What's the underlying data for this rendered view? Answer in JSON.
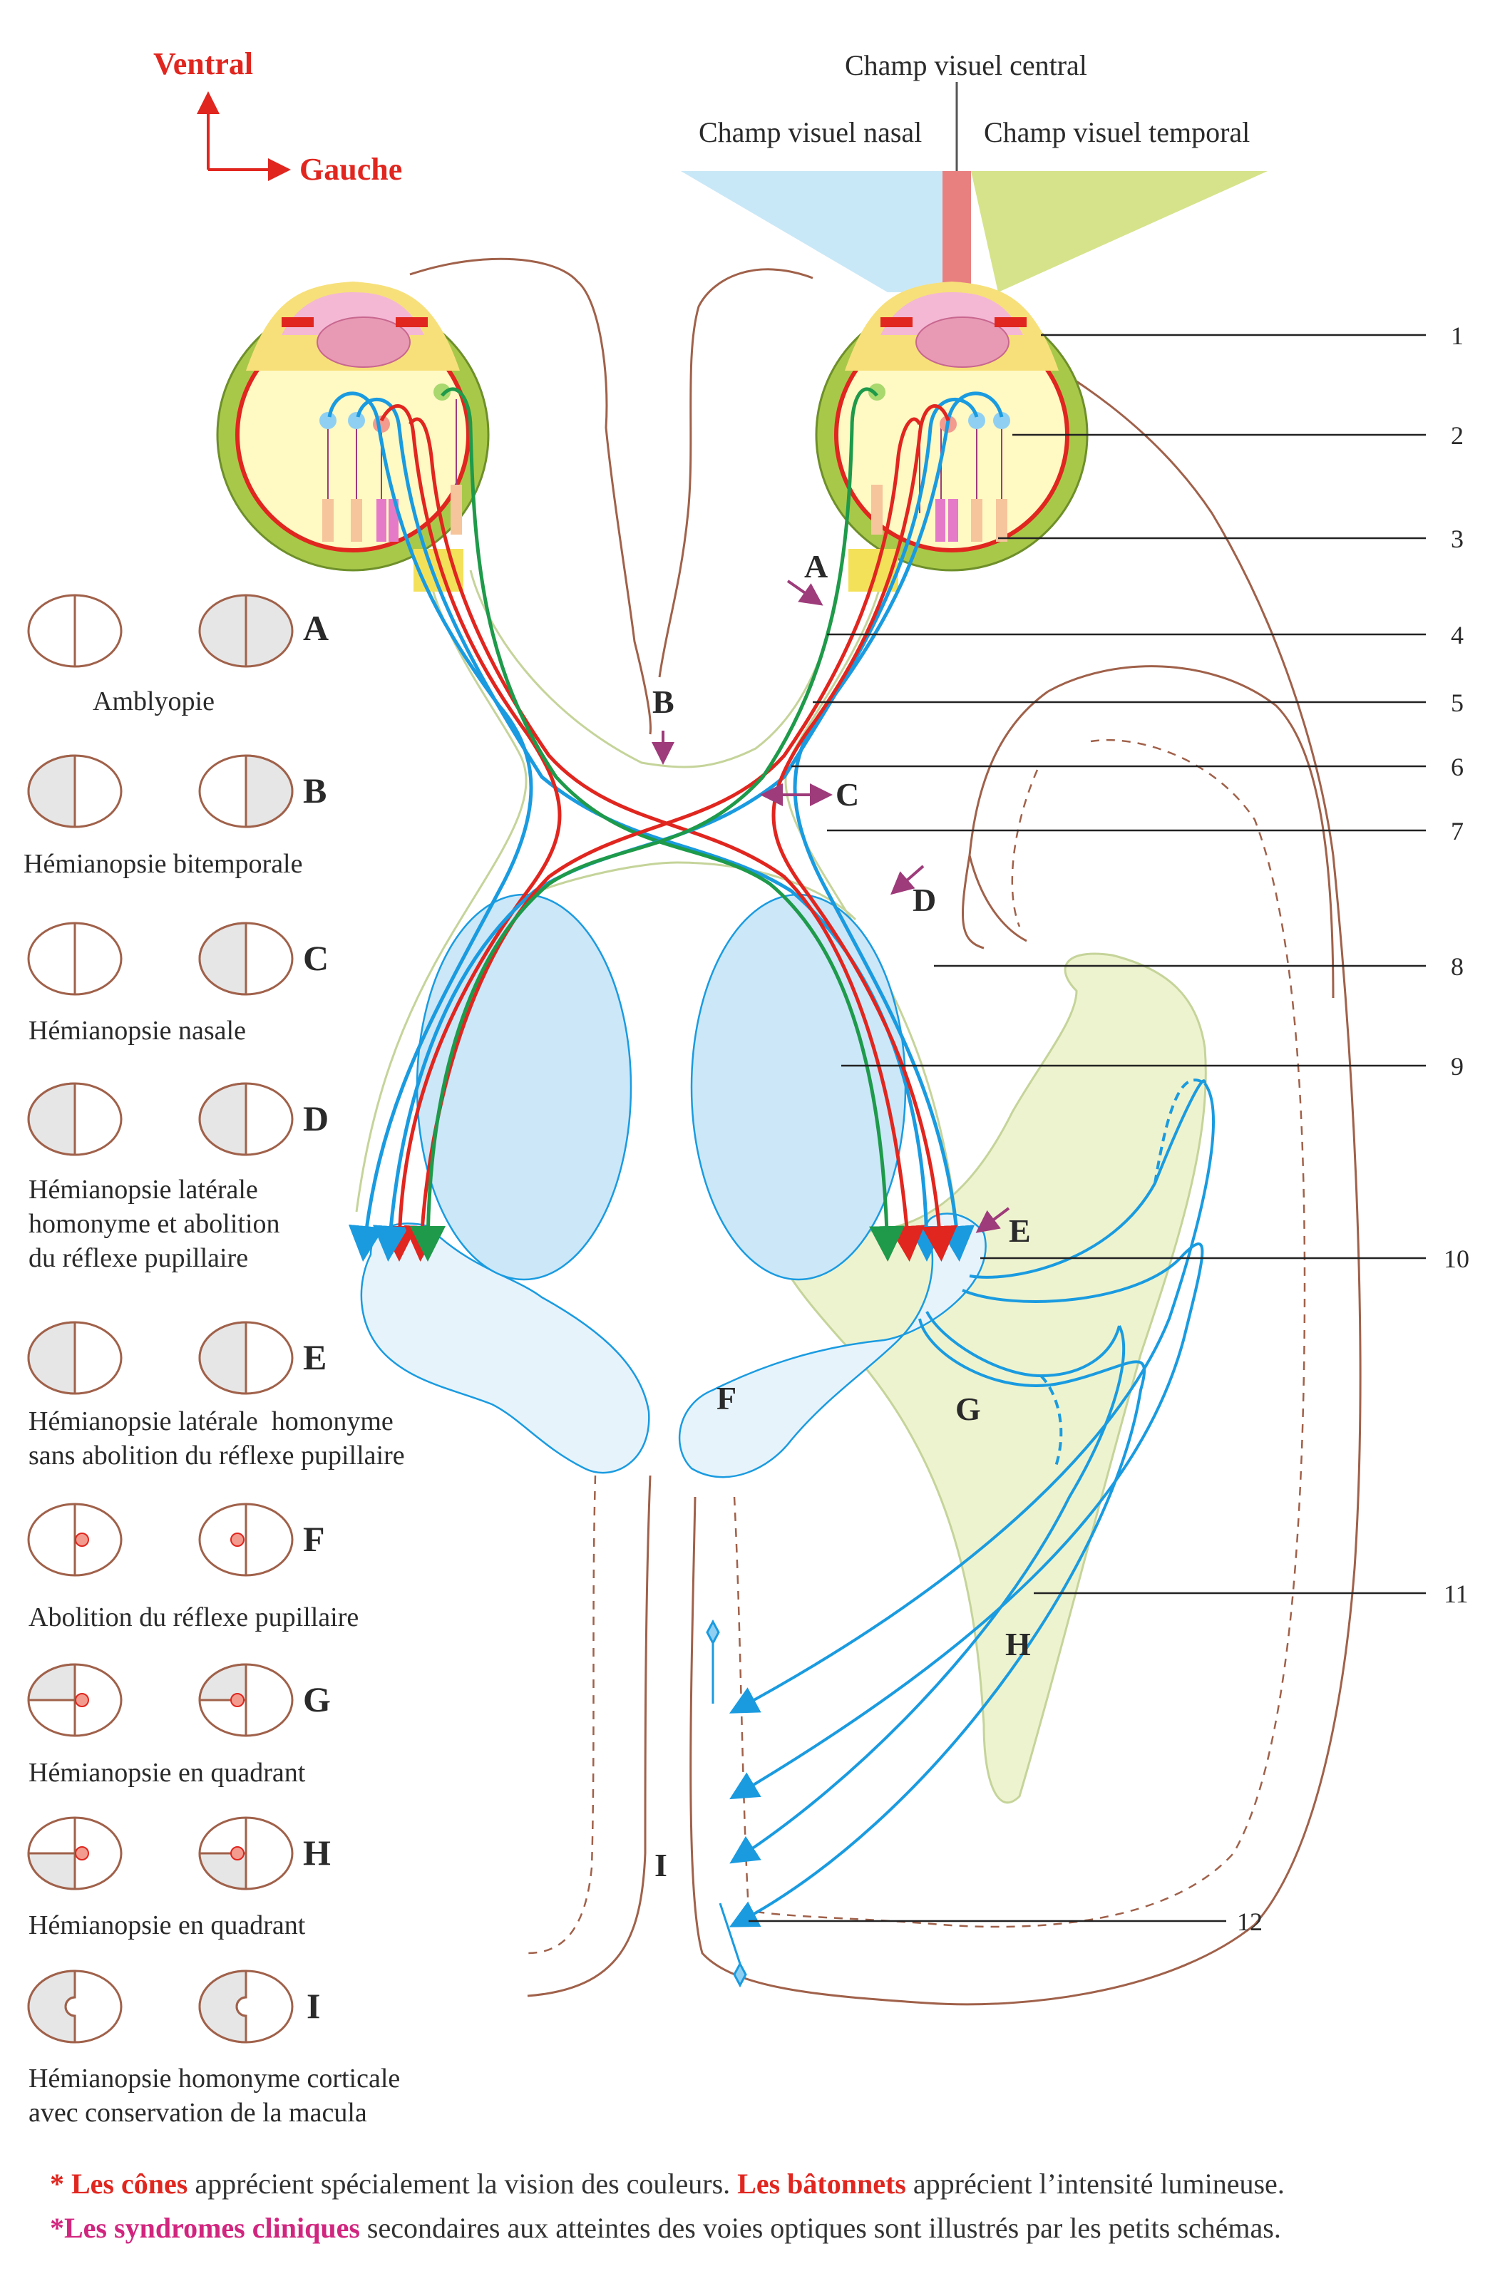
{
  "orientation": {
    "up": "Ventral",
    "right": "Gauche"
  },
  "visual_fields": {
    "central": "Champ visuel central",
    "nasal": "Champ visuel nasal",
    "temporal": "Champ visuel temporal"
  },
  "colors": {
    "nasal_field": "#c9e8f7",
    "temporal_field": "#d6e38a",
    "central_field": "#e98080",
    "blue_fiber": "#1a9be0",
    "red_fiber": "#e0261f",
    "green_fiber": "#1e9a4a",
    "brain_outline": "#a0614a",
    "tract_outline": "#c5d49a",
    "nucleus_fill": "#cbe7f8",
    "radiation_fill": "#eef3cf",
    "arrow": "#9e3b7a"
  },
  "syndromes": [
    {
      "letter": "A",
      "name": [
        "Amblyopie"
      ]
    },
    {
      "letter": "B",
      "name": [
        "Hémianopsie bitemporale"
      ]
    },
    {
      "letter": "C",
      "name": [
        "Hémianopsie nasale"
      ]
    },
    {
      "letter": "D",
      "name": [
        "Hémianopsie latérale",
        "homonyme et abolition",
        "du réflexe pupillaire"
      ]
    },
    {
      "letter": "E",
      "name": [
        "Hémianopsie latérale  homonyme",
        "sans abolition du réflexe pupillaire"
      ]
    },
    {
      "letter": "F",
      "name": [
        "Abolition du réflexe pupillaire"
      ]
    },
    {
      "letter": "G",
      "name": [
        "Hémianopsie en quadrant"
      ]
    },
    {
      "letter": "H",
      "name": [
        "Hémianopsie en quadrant"
      ]
    },
    {
      "letter": "I",
      "name": [
        "Hémianopsie homonyme corticale",
        "avec conservation de la macula"
      ]
    }
  ],
  "lesion_labels": [
    "A",
    "B",
    "C",
    "D",
    "E",
    "F",
    "G",
    "H",
    "I"
  ],
  "numbers": [
    "1",
    "2",
    "3",
    "4",
    "5",
    "6",
    "7",
    "8",
    "9",
    "10",
    "11",
    "12"
  ],
  "notes": {
    "line1": {
      "star": "* ",
      "bold1": "Les cônes",
      "text1": " apprécient spécialement la vision des couleurs. ",
      "bold2": "Les bâtonnets",
      "text2": " apprécient l’intensité lumineuse."
    },
    "line2": {
      "star": "*",
      "bold1": "Les syndromes cliniques",
      "text1": " secondaires aux atteintes des voies optiques sont illustrés par les petits schémas."
    }
  }
}
